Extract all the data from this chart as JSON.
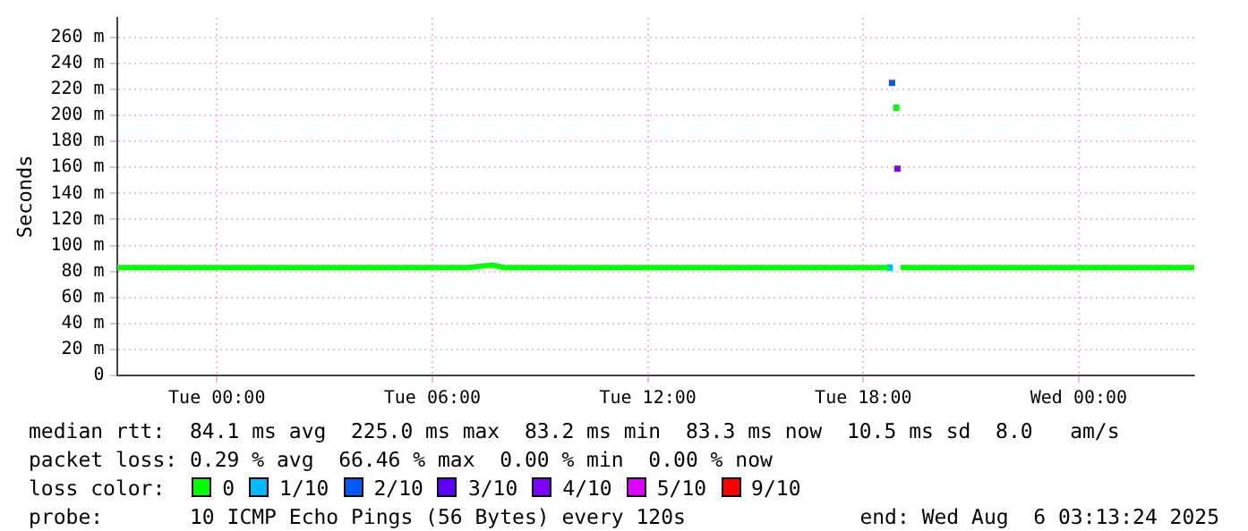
{
  "chart_data": {
    "type": "line",
    "ylabel": "Seconds",
    "xlim": [
      "2025-08-04T21:13",
      "2025-08-06T03:13"
    ],
    "xticks": [
      {
        "value": "2025-08-05T00:00",
        "label": "Tue 00:00"
      },
      {
        "value": "2025-08-05T06:00",
        "label": "Tue 06:00"
      },
      {
        "value": "2025-08-05T12:00",
        "label": "Tue 12:00"
      },
      {
        "value": "2025-08-05T18:00",
        "label": "Tue 18:00"
      },
      {
        "value": "2025-08-06T00:00",
        "label": "Wed 00:00"
      }
    ],
    "ylim": [
      0,
      275
    ],
    "yticks": [
      0,
      {
        "value": 20,
        "label": "20 m"
      },
      {
        "value": 40,
        "label": "40 m"
      },
      {
        "value": 60,
        "label": "60 m"
      },
      {
        "value": 80,
        "label": "80 m"
      },
      {
        "value": 100,
        "label": "100 m"
      },
      {
        "value": 120,
        "label": "120 m"
      },
      {
        "value": 140,
        "label": "140 m"
      },
      {
        "value": 160,
        "label": "160 m"
      },
      {
        "value": 180,
        "label": "180 m"
      },
      {
        "value": 200,
        "label": "200 m"
      },
      {
        "value": 220,
        "label": "220 m"
      },
      {
        "value": 240,
        "label": "240 m"
      },
      {
        "value": 260,
        "label": "260 m"
      }
    ],
    "grid": true,
    "legend": "bottom",
    "legend_title": "loss color:",
    "line_style": "solid",
    "series": [
      {
        "name": "0",
        "color": "#00ff00",
        "x": [
          "2025-08-04T21:13",
          "2025-08-04T23:00",
          "2025-08-05T01:00",
          "2025-08-05T03:00",
          "2025-08-05T05:00",
          "2025-08-05T07:00",
          "2025-08-05T07:40",
          "2025-08-05T08:00",
          "2025-08-05T10:00",
          "2025-08-05T12:00",
          "2025-08-05T14:00",
          "2025-08-05T16:00",
          "2025-08-05T18:00",
          "2025-08-05T18:42",
          "2025-08-05T18:47",
          "2025-08-05T19:02",
          "2025-08-05T21:00",
          "2025-08-05T23:00",
          "2025-08-06T01:00",
          "2025-08-06T03:13"
        ],
        "values": [
          83,
          83,
          83,
          83,
          83,
          83,
          85,
          83,
          83,
          83,
          83,
          83,
          83,
          83,
          null,
          83,
          83,
          83,
          83,
          83
        ]
      },
      {
        "name": "1/10",
        "type": "scatter",
        "marker": "square",
        "color": "#00b8ff",
        "x": [
          "2025-08-05T18:44"
        ],
        "values": [
          83
        ]
      },
      {
        "name": "2/10",
        "type": "scatter",
        "marker": "square",
        "color": "#0059ff",
        "x": [
          "2025-08-05T18:48"
        ],
        "values": [
          225
        ]
      },
      {
        "name": "3/10",
        "type": "scatter",
        "marker": "square",
        "color": "#5e00ff"
      },
      {
        "name": "4/10",
        "type": "scatter",
        "marker": "square",
        "color": "#7e00ff",
        "x": [
          "2025-08-05T18:57"
        ],
        "values": [
          159
        ]
      },
      {
        "name": "5/10",
        "type": "scatter",
        "marker": "square",
        "color": "#dd00ff"
      },
      {
        "name": "9/10",
        "type": "scatter",
        "marker": "square",
        "color": "#ff0000"
      },
      {
        "type": "scatter",
        "marker": "square",
        "color": "#00ff00",
        "x": [
          "2025-08-05T18:55"
        ],
        "values": [
          206
        ]
      }
    ],
    "annotations": [
      "median rtt:  84.1 ms avg  225.0 ms max  83.2 ms min  83.3 ms now  10.5 ms sd  8.0   am/s",
      "packet loss: 0.29 % avg  66.46 % max  0.00 % min  0.00 % now",
      "probe:       10 ICMP Echo Pings (56 Bytes) every 120s",
      "end: Wed Aug  6 03:13:24 2025"
    ]
  }
}
